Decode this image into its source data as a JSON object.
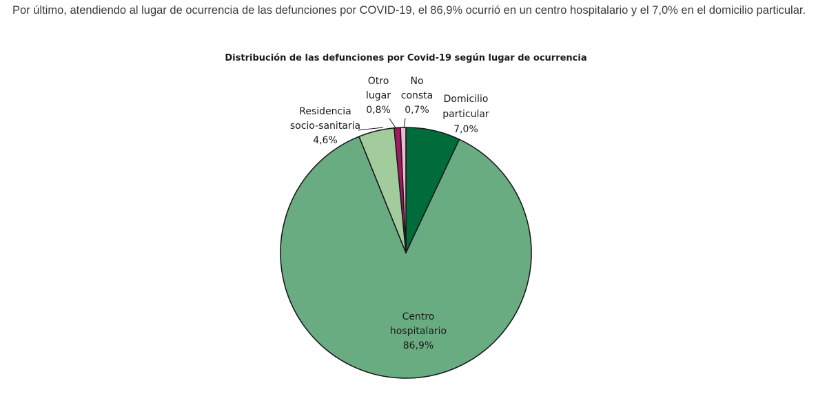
{
  "intro_text": "Por último, atendiendo al lugar de ocurrencia de las defunciones por COVID-19, el 86,9% ocurrió en un centro hospitalario y el 7,0% en el domicilio particular.",
  "chart_data": {
    "type": "pie",
    "title": "Distribución de las defunciones por Covid-19 según lugar de ocurrencia",
    "unit": "%",
    "slices": [
      {
        "label_lines": [
          "Domicilio",
          "particular",
          "7,0%"
        ],
        "value": 7.0,
        "color": "#006c3b"
      },
      {
        "label_lines": [
          "Centro",
          "hospitalario",
          "86,9%"
        ],
        "value": 86.9,
        "color": "#6aac82"
      },
      {
        "label_lines": [
          "Residencia",
          "socio-sanitaria",
          "4,6%"
        ],
        "value": 4.6,
        "color": "#a2cc9c"
      },
      {
        "label_lines": [
          "Otro",
          "lugar",
          "0,8%"
        ],
        "value": 0.8,
        "color": "#a01a5f"
      },
      {
        "label_lines": [
          "No",
          "consta",
          "0,7%"
        ],
        "value": 0.7,
        "color": "#f2b8d2"
      }
    ]
  }
}
